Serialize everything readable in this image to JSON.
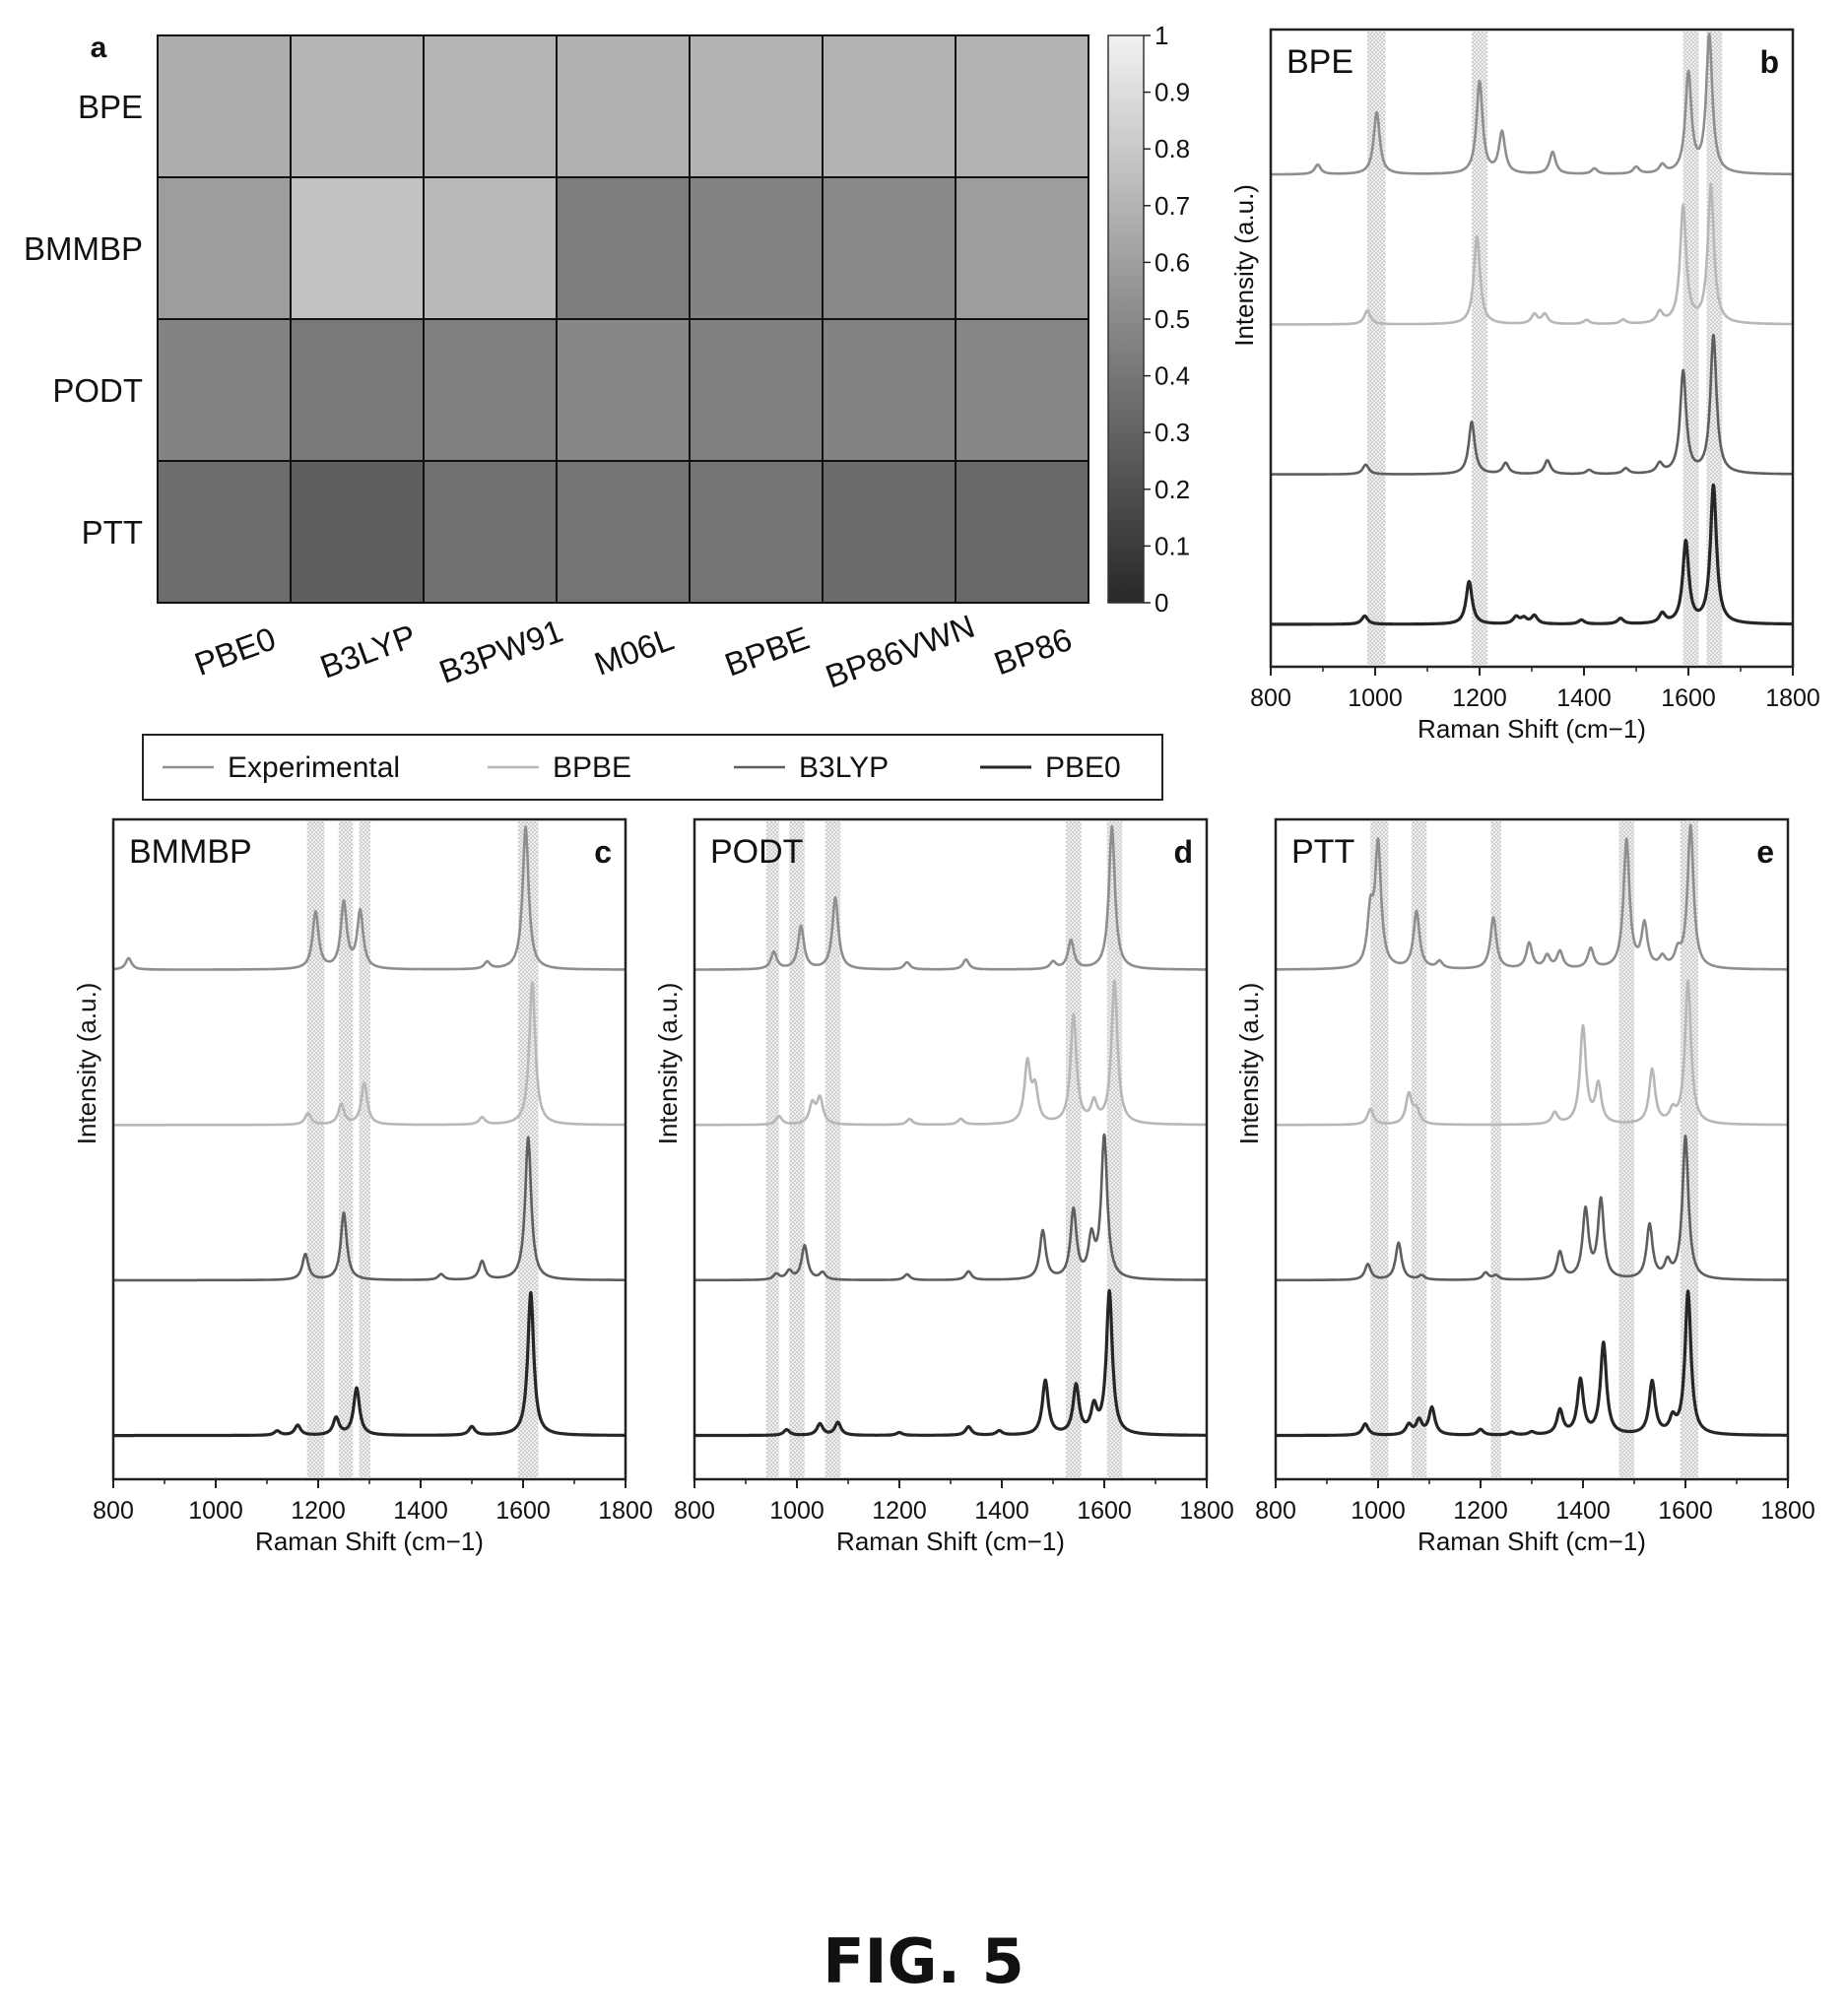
{
  "figure_caption": "FIG. 5",
  "colors": {
    "Experimental": "#8e8e8e",
    "BPBE": "#b7b7b7",
    "B3LYP": "#5e5e5e",
    "PBE0": "#262626",
    "grid_line": "#111111",
    "highlight": "#d8d8d8"
  },
  "legend": {
    "entries": [
      "Experimental",
      "BPBE",
      "B3LYP",
      "PBE0"
    ]
  },
  "chart_data": [
    {
      "type": "heatmap",
      "panel_label": "a",
      "rows": [
        "BPE",
        "BMMBP",
        "PODT",
        "PTT"
      ],
      "columns": [
        "PBE0",
        "B3LYP",
        "B3PW91",
        "M06L",
        "BPBE",
        "BP86VWN",
        "BP86"
      ],
      "values": [
        [
          0.66,
          0.7,
          0.7,
          0.68,
          0.69,
          0.69,
          0.69
        ],
        [
          0.58,
          0.76,
          0.72,
          0.42,
          0.45,
          0.48,
          0.58
        ],
        [
          0.45,
          0.4,
          0.43,
          0.47,
          0.44,
          0.45,
          0.47
        ],
        [
          0.34,
          0.27,
          0.36,
          0.38,
          0.38,
          0.33,
          0.32
        ]
      ],
      "colorbar": {
        "range": [
          0,
          1
        ],
        "ticks": [
          "0",
          "0.1",
          "0.2",
          "0.3",
          "0.4",
          "0.5",
          "0.6",
          "0.7",
          "0.8",
          "0.9",
          "1"
        ]
      }
    },
    {
      "type": "line",
      "panel_label": "b",
      "title": "BPE",
      "xlabel": "Raman Shift (cm−1)",
      "ylabel": "Intensity (a.u.)",
      "xlim": [
        800,
        1800
      ],
      "x_ticks": [
        "800",
        "1000",
        "1200",
        "1400",
        "1600",
        "1800"
      ],
      "highlight_bands": [
        [
          985,
          1020
        ],
        [
          1185,
          1215
        ],
        [
          1590,
          1620
        ],
        [
          1635,
          1665
        ]
      ],
      "series": [
        {
          "name": "Experimental",
          "peaks": [
            [
              890,
              0.07
            ],
            [
              1003,
              0.45
            ],
            [
              1200,
              0.67
            ],
            [
              1243,
              0.3
            ],
            [
              1340,
              0.16
            ],
            [
              1420,
              0.04
            ],
            [
              1500,
              0.05
            ],
            [
              1550,
              0.06
            ],
            [
              1600,
              0.72
            ],
            [
              1640,
              1.0
            ]
          ]
        },
        {
          "name": "BPBE",
          "peaks": [
            [
              985,
              0.1
            ],
            [
              1195,
              0.64
            ],
            [
              1305,
              0.07
            ],
            [
              1325,
              0.07
            ],
            [
              1405,
              0.03
            ],
            [
              1475,
              0.03
            ],
            [
              1545,
              0.08
            ],
            [
              1590,
              0.85
            ],
            [
              1643,
              1.0
            ]
          ]
        },
        {
          "name": "B3LYP",
          "peaks": [
            [
              982,
              0.07
            ],
            [
              1185,
              0.38
            ],
            [
              1250,
              0.08
            ],
            [
              1330,
              0.1
            ],
            [
              1410,
              0.03
            ],
            [
              1480,
              0.04
            ],
            [
              1545,
              0.07
            ],
            [
              1590,
              0.74
            ],
            [
              1648,
              1.0
            ]
          ]
        },
        {
          "name": "PBE0",
          "peaks": [
            [
              980,
              0.06
            ],
            [
              1180,
              0.31
            ],
            [
              1270,
              0.05
            ],
            [
              1285,
              0.04
            ],
            [
              1305,
              0.06
            ],
            [
              1395,
              0.03
            ],
            [
              1470,
              0.04
            ],
            [
              1550,
              0.07
            ],
            [
              1595,
              0.59
            ],
            [
              1648,
              1.0
            ]
          ]
        }
      ]
    },
    {
      "type": "line",
      "panel_label": "c",
      "title": "BMMBP",
      "xlabel": "Raman Shift (cm−1)",
      "ylabel": "Intensity (a.u.)",
      "xlim": [
        800,
        1800
      ],
      "x_ticks": [
        "800",
        "1000",
        "1200",
        "1400",
        "1600",
        "1800"
      ],
      "highlight_bands": [
        [
          1178,
          1212
        ],
        [
          1240,
          1268
        ],
        [
          1280,
          1302
        ],
        [
          1590,
          1630
        ]
      ],
      "series": [
        {
          "name": "Experimental",
          "peaks": [
            [
              830,
              0.08
            ],
            [
              1195,
              0.4
            ],
            [
              1250,
              0.46
            ],
            [
              1282,
              0.4
            ],
            [
              1530,
              0.05
            ],
            [
              1605,
              1.0
            ]
          ]
        },
        {
          "name": "BPBE",
          "peaks": [
            [
              1180,
              0.08
            ],
            [
              1245,
              0.14
            ],
            [
              1290,
              0.29
            ],
            [
              1520,
              0.05
            ],
            [
              1618,
              1.0
            ]
          ]
        },
        {
          "name": "B3LYP",
          "peaks": [
            [
              1175,
              0.18
            ],
            [
              1250,
              0.47
            ],
            [
              1440,
              0.04
            ],
            [
              1520,
              0.13
            ],
            [
              1610,
              1.0
            ]
          ]
        },
        {
          "name": "PBE0",
          "peaks": [
            [
              1120,
              0.03
            ],
            [
              1160,
              0.07
            ],
            [
              1235,
              0.12
            ],
            [
              1275,
              0.33
            ],
            [
              1500,
              0.06
            ],
            [
              1615,
              1.0
            ]
          ]
        }
      ]
    },
    {
      "type": "line",
      "panel_label": "d",
      "title": "PODT",
      "xlabel": "Raman Shift (cm−1)",
      "ylabel": "Intensity (a.u.)",
      "xlim": [
        800,
        1800
      ],
      "x_ticks": [
        "800",
        "1000",
        "1200",
        "1400",
        "1600",
        "1800"
      ],
      "highlight_bands": [
        [
          940,
          965
        ],
        [
          985,
          1015
        ],
        [
          1055,
          1085
        ],
        [
          1525,
          1555
        ],
        [
          1605,
          1635
        ]
      ],
      "series": [
        {
          "name": "Experimental",
          "peaks": [
            [
              955,
              0.12
            ],
            [
              1008,
              0.3
            ],
            [
              1075,
              0.5
            ],
            [
              1215,
              0.05
            ],
            [
              1330,
              0.07
            ],
            [
              1500,
              0.05
            ],
            [
              1535,
              0.2
            ],
            [
              1615,
              1.0
            ]
          ]
        },
        {
          "name": "BPBE",
          "peaks": [
            [
              965,
              0.06
            ],
            [
              1030,
              0.14
            ],
            [
              1045,
              0.18
            ],
            [
              1220,
              0.04
            ],
            [
              1320,
              0.04
            ],
            [
              1450,
              0.42
            ],
            [
              1465,
              0.23
            ],
            [
              1540,
              0.76
            ],
            [
              1580,
              0.14
            ],
            [
              1620,
              1.0
            ]
          ]
        },
        {
          "name": "B3LYP",
          "peaks": [
            [
              960,
              0.04
            ],
            [
              985,
              0.06
            ],
            [
              1015,
              0.24
            ],
            [
              1050,
              0.05
            ],
            [
              1215,
              0.04
            ],
            [
              1335,
              0.06
            ],
            [
              1480,
              0.34
            ],
            [
              1540,
              0.48
            ],
            [
              1575,
              0.27
            ],
            [
              1600,
              1.0
            ]
          ]
        },
        {
          "name": "PBE0",
          "peaks": [
            [
              980,
              0.04
            ],
            [
              1045,
              0.08
            ],
            [
              1080,
              0.09
            ],
            [
              1200,
              0.02
            ],
            [
              1335,
              0.06
            ],
            [
              1395,
              0.03
            ],
            [
              1485,
              0.38
            ],
            [
              1545,
              0.34
            ],
            [
              1580,
              0.18
            ],
            [
              1610,
              1.0
            ]
          ]
        }
      ]
    },
    {
      "type": "line",
      "panel_label": "e",
      "title": "PTT",
      "xlabel": "Raman Shift (cm−1)",
      "ylabel": "Intensity (a.u.)",
      "xlim": [
        800,
        1800
      ],
      "x_ticks": [
        "800",
        "1000",
        "1200",
        "1400",
        "1600",
        "1800"
      ],
      "highlight_bands": [
        [
          985,
          1020
        ],
        [
          1065,
          1095
        ],
        [
          1220,
          1240
        ],
        [
          1470,
          1500
        ],
        [
          1590,
          1625
        ]
      ],
      "series": [
        {
          "name": "Experimental",
          "peaks": [
            [
              985,
              0.36
            ],
            [
              1000,
              0.85
            ],
            [
              1075,
              0.4
            ],
            [
              1120,
              0.05
            ],
            [
              1225,
              0.36
            ],
            [
              1295,
              0.18
            ],
            [
              1330,
              0.09
            ],
            [
              1355,
              0.12
            ],
            [
              1415,
              0.14
            ],
            [
              1485,
              0.9
            ],
            [
              1520,
              0.3
            ],
            [
              1555,
              0.07
            ],
            [
              1585,
              0.1
            ],
            [
              1610,
              1.0
            ]
          ]
        },
        {
          "name": "BPBE",
          "peaks": [
            [
              985,
              0.11
            ],
            [
              1060,
              0.21
            ],
            [
              1075,
              0.1
            ],
            [
              1345,
              0.08
            ],
            [
              1400,
              0.68
            ],
            [
              1430,
              0.27
            ],
            [
              1535,
              0.38
            ],
            [
              1575,
              0.08
            ],
            [
              1605,
              1.0
            ]
          ]
        },
        {
          "name": "B3LYP",
          "peaks": [
            [
              980,
              0.11
            ],
            [
              1040,
              0.26
            ],
            [
              1085,
              0.03
            ],
            [
              1210,
              0.05
            ],
            [
              1230,
              0.03
            ],
            [
              1355,
              0.19
            ],
            [
              1405,
              0.48
            ],
            [
              1435,
              0.55
            ],
            [
              1530,
              0.38
            ],
            [
              1565,
              0.11
            ],
            [
              1600,
              1.0
            ]
          ]
        },
        {
          "name": "PBE0",
          "peaks": [
            [
              975,
              0.08
            ],
            [
              1060,
              0.07
            ],
            [
              1080,
              0.1
            ],
            [
              1105,
              0.19
            ],
            [
              1200,
              0.04
            ],
            [
              1260,
              0.02
            ],
            [
              1300,
              0.02
            ],
            [
              1355,
              0.17
            ],
            [
              1395,
              0.38
            ],
            [
              1440,
              0.64
            ],
            [
              1535,
              0.37
            ],
            [
              1575,
              0.1
            ],
            [
              1605,
              1.0
            ]
          ]
        }
      ]
    }
  ]
}
